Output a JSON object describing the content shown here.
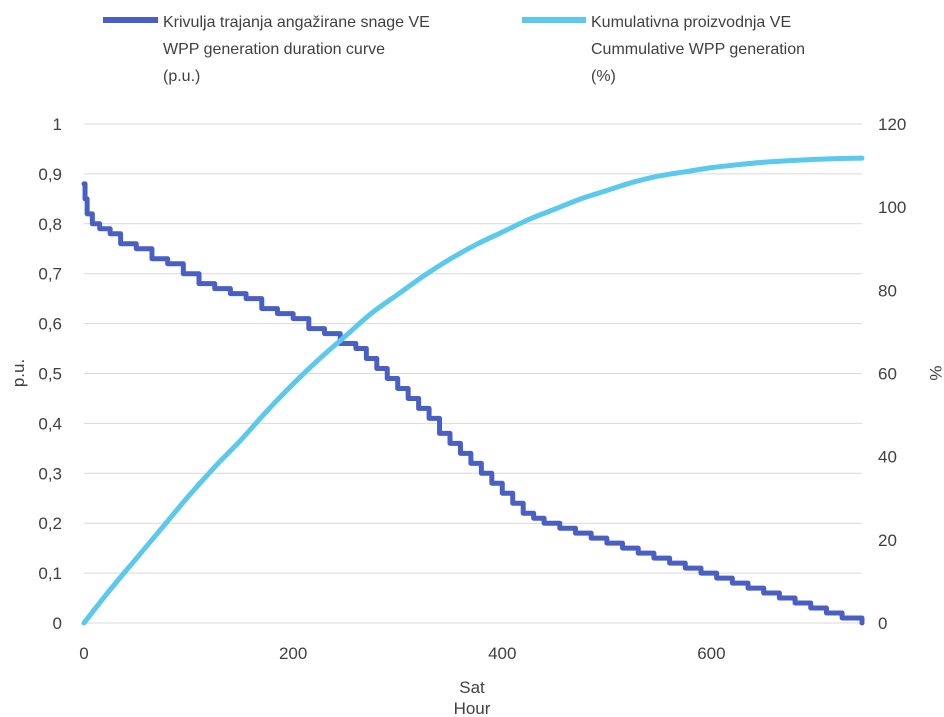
{
  "chart_data": {
    "type": "line",
    "title": "",
    "legend": {
      "position": "top",
      "entries": [
        {
          "lines": [
            "Krivulja trajanja angažirane snage VE",
            "WPP generation duration curve",
            "(p.u.)"
          ],
          "color": "#4a5fc4",
          "axis": "left"
        },
        {
          "lines": [
            "Kumulativna proizvodnja VE",
            "Cummulative WPP generation",
            "(%)"
          ],
          "color": "#5bc8ed",
          "axis": "right"
        }
      ]
    },
    "x_axis": {
      "label_lines": [
        "Sat",
        "Hour"
      ],
      "range": [
        0,
        744
      ],
      "ticks": [
        0,
        200,
        400,
        600
      ],
      "tick_labels": [
        "0",
        "200",
        "400",
        "600"
      ]
    },
    "y_axis_left": {
      "label": "p.u.",
      "range": [
        0,
        1
      ],
      "ticks": [
        0,
        0.1,
        0.2,
        0.3,
        0.4,
        0.5,
        0.6,
        0.7,
        0.8,
        0.9,
        1
      ],
      "tick_labels": [
        "0",
        "0,1",
        "0,2",
        "0,3",
        "0,4",
        "0,5",
        "0,6",
        "0,7",
        "0,8",
        "0,9",
        "1"
      ]
    },
    "y_axis_right": {
      "label": "%",
      "range": [
        0,
        120
      ],
      "ticks": [
        0,
        20,
        40,
        60,
        80,
        100,
        120
      ],
      "tick_labels": [
        "0",
        "20",
        "40",
        "60",
        "80",
        "100",
        "120"
      ]
    },
    "grid": true,
    "series": [
      {
        "axis": "left",
        "color": "#4a5fc4",
        "x": [
          0,
          1,
          3,
          8,
          15,
          25,
          35,
          50,
          65,
          80,
          95,
          110,
          125,
          140,
          155,
          170,
          185,
          200,
          215,
          230,
          245,
          260,
          270,
          280,
          290,
          300,
          310,
          320,
          330,
          340,
          350,
          360,
          370,
          380,
          390,
          400,
          410,
          420,
          430,
          440,
          455,
          470,
          485,
          500,
          515,
          530,
          545,
          560,
          575,
          590,
          605,
          620,
          635,
          650,
          665,
          680,
          695,
          710,
          725,
          744
        ],
        "y": [
          0.88,
          0.85,
          0.82,
          0.8,
          0.79,
          0.78,
          0.76,
          0.75,
          0.73,
          0.72,
          0.7,
          0.68,
          0.67,
          0.66,
          0.65,
          0.63,
          0.62,
          0.61,
          0.59,
          0.58,
          0.56,
          0.55,
          0.53,
          0.51,
          0.49,
          0.47,
          0.45,
          0.43,
          0.41,
          0.38,
          0.36,
          0.34,
          0.32,
          0.3,
          0.28,
          0.26,
          0.24,
          0.22,
          0.21,
          0.2,
          0.19,
          0.18,
          0.17,
          0.16,
          0.15,
          0.14,
          0.13,
          0.12,
          0.11,
          0.1,
          0.09,
          0.08,
          0.07,
          0.06,
          0.05,
          0.04,
          0.03,
          0.02,
          0.01,
          0.0
        ]
      },
      {
        "axis": "right",
        "color": "#5bc8ed",
        "x": [
          0,
          25,
          50,
          75,
          100,
          125,
          150,
          175,
          200,
          225,
          250,
          275,
          300,
          325,
          350,
          375,
          400,
          425,
          450,
          475,
          500,
          525,
          550,
          575,
          600,
          625,
          650,
          675,
          700,
          725,
          744
        ],
        "y": [
          0,
          8,
          15.5,
          23,
          30.5,
          37.5,
          44,
          51,
          57.5,
          63.5,
          69,
          74.5,
          79,
          83.5,
          87.5,
          91,
          94,
          97,
          99.5,
          102,
          104,
          106,
          107.5,
          108.5,
          109.5,
          110.2,
          110.8,
          111.2,
          111.5,
          111.7,
          111.8
        ]
      }
    ]
  }
}
